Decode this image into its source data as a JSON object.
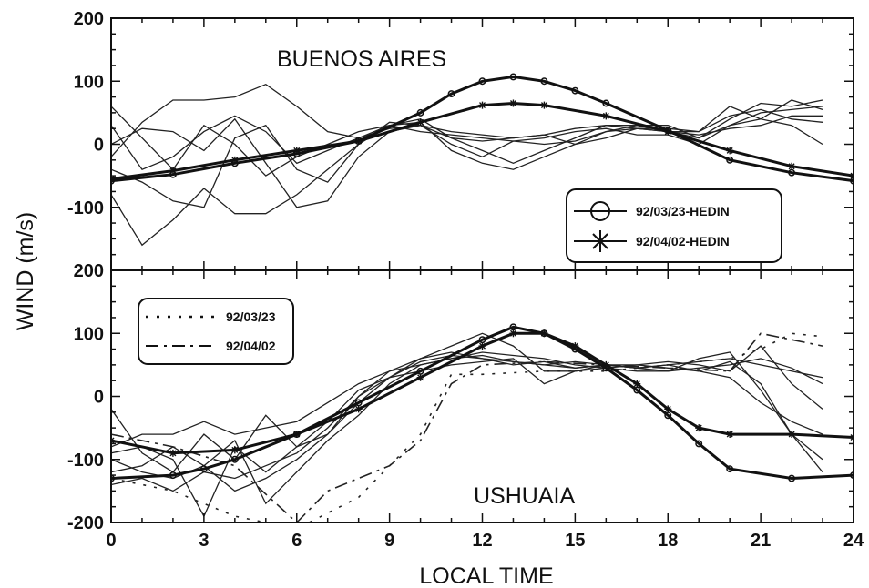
{
  "chart_data": [
    {
      "type": "line",
      "title": "BUENOS AIRES",
      "xlabel": "LOCAL TIME",
      "ylabel": "WIND (m/s)",
      "xlim": [
        0,
        24
      ],
      "ylim": [
        -200,
        200
      ],
      "x_ticks": [
        0,
        3,
        6,
        9,
        12,
        15,
        18,
        21,
        24
      ],
      "y_ticks": [
        200,
        100,
        0,
        -100
      ],
      "legend": {
        "placement": "bottom-right",
        "entries": [
          "92/03/23-HEDIN",
          "92/04/02-HEDIN"
        ]
      },
      "model_series": [
        {
          "name": "92/03/23-HEDIN",
          "marker": "circle",
          "x": [
            0,
            2,
            4,
            6,
            8,
            10,
            11,
            12,
            13,
            14,
            15,
            16,
            18,
            20,
            22,
            24
          ],
          "y": [
            -58,
            -48,
            -30,
            -15,
            5,
            50,
            80,
            100,
            107,
            100,
            85,
            65,
            22,
            -25,
            -45,
            -58
          ]
        },
        {
          "name": "92/04/02-HEDIN",
          "marker": "asterisk",
          "x": [
            0,
            2,
            4,
            6,
            8,
            10,
            12,
            13,
            14,
            16,
            18,
            20,
            22,
            24
          ],
          "y": [
            -55,
            -42,
            -25,
            -10,
            5,
            35,
            62,
            65,
            62,
            45,
            20,
            -10,
            -35,
            -50
          ]
        }
      ],
      "observed_series": [
        {
          "x": [
            0,
            1,
            2,
            3,
            4,
            5,
            6,
            7,
            8,
            9,
            10,
            11,
            12,
            13,
            14,
            15,
            16,
            17,
            18,
            19,
            20,
            21,
            22,
            23
          ],
          "y": [
            30,
            -40,
            -20,
            20,
            45,
            20,
            -30,
            -10,
            10,
            30,
            40,
            10,
            5,
            10,
            15,
            0,
            10,
            25,
            20,
            10,
            30,
            50,
            55,
            60
          ]
        },
        {
          "x": [
            0,
            1,
            2,
            3,
            4,
            5,
            6,
            7,
            8,
            9,
            10,
            11,
            12,
            13,
            14,
            15,
            16,
            17,
            18,
            19,
            20,
            21,
            22,
            23
          ],
          "y": [
            -20,
            35,
            70,
            70,
            75,
            95,
            60,
            20,
            10,
            25,
            30,
            10,
            -10,
            -30,
            -10,
            10,
            30,
            30,
            20,
            20,
            60,
            40,
            70,
            55
          ]
        },
        {
          "x": [
            0,
            1,
            2,
            3,
            4,
            5,
            6,
            7,
            8,
            9,
            10,
            11,
            12,
            13,
            14,
            15,
            16,
            17,
            18,
            19,
            20,
            21,
            22,
            23
          ],
          "y": [
            -80,
            -160,
            -120,
            -70,
            -110,
            -110,
            -80,
            -40,
            0,
            30,
            35,
            -10,
            -30,
            -40,
            -20,
            0,
            20,
            25,
            25,
            20,
            45,
            55,
            40,
            35
          ]
        },
        {
          "x": [
            0,
            1,
            2,
            3,
            4,
            5,
            6,
            7,
            8,
            9,
            10,
            11,
            12,
            13,
            14,
            15,
            16,
            17,
            18,
            19,
            20,
            21,
            22,
            23
          ],
          "y": [
            60,
            10,
            -40,
            30,
            0,
            -50,
            -20,
            0,
            20,
            30,
            20,
            15,
            10,
            5,
            0,
            5,
            20,
            30,
            30,
            10,
            40,
            65,
            60,
            70
          ]
        },
        {
          "x": [
            0,
            1,
            2,
            3,
            4,
            5,
            6,
            7,
            8,
            9,
            10,
            11,
            12,
            13,
            14,
            15,
            16,
            17,
            18,
            19,
            20,
            21,
            22,
            23
          ],
          "y": [
            -40,
            -60,
            -90,
            -100,
            10,
            30,
            -40,
            -60,
            0,
            35,
            30,
            0,
            -20,
            5,
            10,
            20,
            25,
            15,
            15,
            0,
            30,
            40,
            30,
            0
          ]
        },
        {
          "x": [
            0,
            1,
            2,
            3,
            4,
            5,
            6,
            7,
            8,
            9,
            10,
            11,
            12,
            13,
            14,
            15,
            16,
            17,
            18,
            19,
            20,
            21,
            22,
            23
          ],
          "y": [
            0,
            25,
            20,
            -10,
            40,
            -30,
            -100,
            -90,
            -20,
            20,
            30,
            20,
            15,
            10,
            15,
            25,
            30,
            25,
            20,
            15,
            25,
            30,
            45,
            45
          ]
        }
      ]
    },
    {
      "type": "line",
      "title": "USHUAIA",
      "xlabel": "LOCAL TIME",
      "ylabel": "WIND (m/s)",
      "xlim": [
        0,
        24
      ],
      "ylim": [
        -200,
        200
      ],
      "x_ticks": [
        0,
        3,
        6,
        9,
        12,
        15,
        18,
        21,
        24
      ],
      "y_ticks": [
        200,
        100,
        0,
        -100,
        -200
      ],
      "legend": {
        "placement": "top-left",
        "entries": [
          "92/03/23",
          "92/04/02"
        ]
      },
      "model_series": [
        {
          "name": "92/03/23",
          "marker": "circle",
          "x": [
            0,
            2,
            3,
            4,
            6,
            8,
            10,
            12,
            13,
            14,
            15,
            16,
            17,
            18,
            19,
            20,
            22,
            24
          ],
          "y": [
            -130,
            -125,
            -115,
            -100,
            -60,
            -10,
            40,
            90,
            110,
            100,
            75,
            45,
            10,
            -30,
            -75,
            -115,
            -130,
            -125
          ]
        },
        {
          "name": "92/04/02",
          "marker": "asterisk",
          "x": [
            0,
            2,
            4,
            6,
            8,
            10,
            12,
            13,
            14,
            15,
            16,
            17,
            18,
            19,
            20,
            22,
            24
          ],
          "y": [
            -70,
            -90,
            -85,
            -60,
            -20,
            30,
            80,
            100,
            100,
            80,
            50,
            20,
            -20,
            -50,
            -60,
            -60,
            -65
          ]
        }
      ],
      "observed_series": [
        {
          "x": [
            0,
            1,
            2,
            3,
            4,
            5,
            6,
            7,
            8,
            9,
            10,
            11,
            12,
            13,
            14,
            15,
            16,
            17,
            18,
            19,
            20,
            21,
            22,
            23
          ],
          "y": [
            -80,
            -60,
            -60,
            -40,
            -60,
            -50,
            -40,
            -10,
            20,
            40,
            60,
            70,
            60,
            50,
            55,
            45,
            50,
            45,
            50,
            55,
            60,
            50,
            40,
            30
          ]
        },
        {
          "x": [
            0,
            1,
            2,
            3,
            4,
            5,
            6,
            7,
            8,
            9,
            10,
            11,
            12,
            13,
            14,
            15,
            16,
            17,
            18,
            19,
            20,
            21,
            22,
            23
          ],
          "y": [
            -100,
            -120,
            -130,
            -110,
            -150,
            -130,
            -100,
            -60,
            -10,
            30,
            60,
            80,
            100,
            80,
            40,
            40,
            50,
            45,
            40,
            60,
            70,
            10,
            -60,
            -100
          ]
        },
        {
          "x": [
            0,
            1,
            2,
            3,
            4,
            5,
            6,
            7,
            8,
            9,
            10,
            11,
            12,
            13,
            14,
            15,
            16,
            17,
            18,
            19,
            20,
            21,
            22,
            23
          ],
          "y": [
            -20,
            -90,
            -120,
            -60,
            -100,
            -30,
            -80,
            -60,
            0,
            40,
            50,
            60,
            70,
            65,
            60,
            50,
            45,
            40,
            40,
            45,
            50,
            60,
            45,
            20
          ]
        },
        {
          "x": [
            0,
            1,
            2,
            3,
            4,
            5,
            6,
            7,
            8,
            9,
            10,
            11,
            12,
            13,
            14,
            15,
            16,
            17,
            18,
            19,
            20,
            21,
            22,
            23
          ],
          "y": [
            -90,
            -80,
            -100,
            -190,
            -80,
            -120,
            -80,
            -40,
            10,
            30,
            40,
            50,
            55,
            60,
            20,
            40,
            45,
            50,
            55,
            50,
            40,
            80,
            20,
            -20
          ]
        },
        {
          "x": [
            0,
            1,
            2,
            3,
            4,
            5,
            6,
            7,
            8,
            9,
            10,
            11,
            12,
            13,
            14,
            15,
            16,
            17,
            18,
            19,
            20,
            21,
            22,
            23
          ],
          "y": [
            -120,
            -110,
            -80,
            -110,
            -70,
            -170,
            -120,
            -70,
            -30,
            20,
            50,
            60,
            65,
            55,
            50,
            45,
            50,
            50,
            45,
            40,
            55,
            20,
            -60,
            -120
          ]
        },
        {
          "x": [
            0,
            1,
            2,
            3,
            4,
            5,
            6,
            7,
            8,
            9,
            10,
            11,
            12,
            13,
            14,
            15,
            16,
            17,
            18,
            19,
            20,
            21,
            22,
            23
          ],
          "y": [
            -140,
            -130,
            -150,
            -120,
            -130,
            -110,
            -90,
            -50,
            0,
            30,
            55,
            65,
            60,
            55,
            50,
            55,
            50,
            45,
            50,
            40,
            30,
            -10,
            -40,
            -60
          ]
        }
      ],
      "dashed_series": [
        {
          "name": "92/03/23",
          "style": "dotted",
          "x": [
            0,
            2,
            4,
            6,
            8,
            10,
            11,
            12,
            14,
            16,
            18,
            20,
            21,
            22,
            23
          ],
          "y": [
            -130,
            -150,
            -190,
            -210,
            -160,
            -60,
            35,
            35,
            40,
            40,
            50,
            60,
            75,
            100,
            95
          ]
        },
        {
          "name": "92/04/02",
          "style": "dash-dot",
          "x": [
            0,
            2,
            4,
            6,
            7,
            9,
            10,
            11,
            12,
            14,
            16,
            18,
            20,
            21,
            22,
            23
          ],
          "y": [
            -60,
            -80,
            -110,
            -200,
            -150,
            -110,
            -70,
            20,
            50,
            55,
            50,
            45,
            40,
            100,
            90,
            80
          ]
        }
      ]
    }
  ]
}
